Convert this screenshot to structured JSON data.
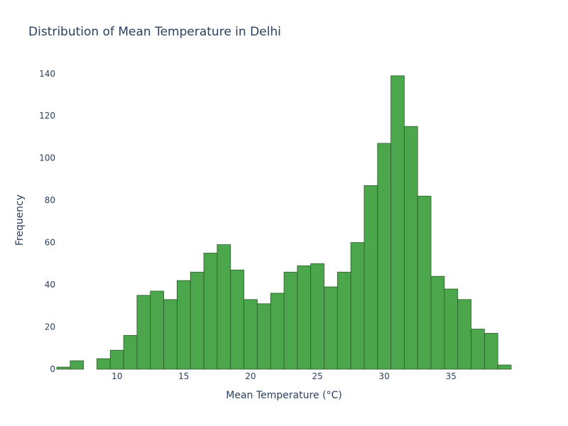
{
  "chart_data": {
    "type": "bar",
    "title": "Distribution of Mean Temperature in Delhi",
    "xlabel": "Mean Temperature (°C)",
    "ylabel": "Frequency",
    "bin_width": 1.0,
    "bin_start": 5.5,
    "xlim": [
      5.5,
      39.5
    ],
    "ylim": [
      0,
      148
    ],
    "x_ticks": [
      10,
      15,
      20,
      25,
      30,
      35
    ],
    "y_ticks": [
      0,
      20,
      40,
      60,
      80,
      100,
      120,
      140
    ],
    "bars": [
      {
        "x0": 5.5,
        "x1": 6.5,
        "count": 1
      },
      {
        "x0": 6.5,
        "x1": 7.5,
        "count": 4
      },
      {
        "x0": 7.5,
        "x1": 8.5,
        "count": 0
      },
      {
        "x0": 8.5,
        "x1": 9.5,
        "count": 5
      },
      {
        "x0": 9.5,
        "x1": 10.5,
        "count": 9
      },
      {
        "x0": 10.5,
        "x1": 11.5,
        "count": 16
      },
      {
        "x0": 11.5,
        "x1": 12.5,
        "count": 35
      },
      {
        "x0": 12.5,
        "x1": 13.5,
        "count": 37
      },
      {
        "x0": 13.5,
        "x1": 14.5,
        "count": 33
      },
      {
        "x0": 14.5,
        "x1": 15.5,
        "count": 42
      },
      {
        "x0": 15.5,
        "x1": 16.5,
        "count": 46
      },
      {
        "x0": 16.5,
        "x1": 17.5,
        "count": 55
      },
      {
        "x0": 17.5,
        "x1": 18.5,
        "count": 59
      },
      {
        "x0": 18.5,
        "x1": 19.5,
        "count": 47
      },
      {
        "x0": 19.5,
        "x1": 20.5,
        "count": 33
      },
      {
        "x0": 20.5,
        "x1": 21.5,
        "count": 31
      },
      {
        "x0": 21.5,
        "x1": 22.5,
        "count": 36
      },
      {
        "x0": 22.5,
        "x1": 23.5,
        "count": 46
      },
      {
        "x0": 23.5,
        "x1": 24.5,
        "count": 49
      },
      {
        "x0": 24.5,
        "x1": 25.5,
        "count": 50
      },
      {
        "x0": 25.5,
        "x1": 26.5,
        "count": 39
      },
      {
        "x0": 26.5,
        "x1": 27.5,
        "count": 46
      },
      {
        "x0": 27.5,
        "x1": 28.5,
        "count": 60
      },
      {
        "x0": 28.5,
        "x1": 29.5,
        "count": 87
      },
      {
        "x0": 29.5,
        "x1": 30.5,
        "count": 107
      },
      {
        "x0": 30.5,
        "x1": 31.5,
        "count": 139
      },
      {
        "x0": 31.5,
        "x1": 32.5,
        "count": 115
      },
      {
        "x0": 32.5,
        "x1": 33.5,
        "count": 82
      },
      {
        "x0": 33.5,
        "x1": 34.5,
        "count": 44
      },
      {
        "x0": 34.5,
        "x1": 35.5,
        "count": 38
      },
      {
        "x0": 35.5,
        "x1": 36.5,
        "count": 33
      },
      {
        "x0": 36.5,
        "x1": 37.5,
        "count": 19
      },
      {
        "x0": 37.5,
        "x1": 38.5,
        "count": 17
      },
      {
        "x0": 38.5,
        "x1": 39.5,
        "count": 2
      }
    ],
    "colors": {
      "bar_fill": "#4ca64c",
      "bar_stroke": "#2d5a2d",
      "text": "#2a3f5f",
      "background": "#ffffff"
    },
    "grid": false
  }
}
